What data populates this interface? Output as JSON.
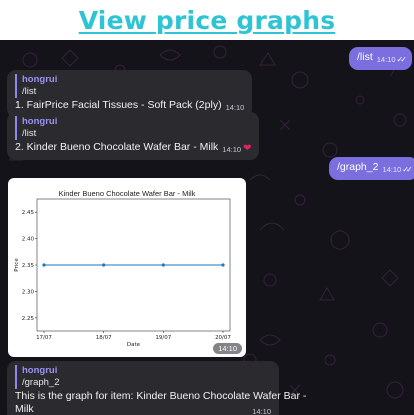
{
  "header": {
    "title": "View price graphs"
  },
  "messages": {
    "m1": {
      "text": "/list",
      "time": "14:10",
      "ticks": "✓✓"
    },
    "m2": {
      "sender": "hongrui",
      "quote": "/list",
      "text": "1. FairPrice Facial Tissues - Soft Pack (2ply)",
      "time": "14:10"
    },
    "m3": {
      "sender": "hongrui",
      "quote": "/list",
      "text": "2. Kinder Bueno Chocolate Wafer Bar - Milk",
      "time": "14:10",
      "emoji": "❤"
    },
    "m4": {
      "text": "/graph_2",
      "time": "14:10",
      "ticks": "✓✓"
    },
    "photo": {
      "time": "14:10"
    },
    "m5": {
      "sender": "hongrui",
      "quote": "/graph_2",
      "line1": "This is the graph for item: Kinder Bueno Chocolate Wafer Bar -",
      "line2": "Milk",
      "time": "14:10"
    }
  },
  "colors": {
    "accent": "#7b6fe0",
    "incoming": "#2a2a2f",
    "title": "#2fc4d4",
    "series": "#1f77b4"
  },
  "chart_data": {
    "type": "line",
    "title": "Kinder Bueno Chocolate Wafer Bar - Milk",
    "xlabel": "Date",
    "ylabel": "Price",
    "x": [
      "17/07",
      "18/07",
      "19/07",
      "20/07"
    ],
    "series": [
      {
        "values": [
          2.35,
          2.35,
          2.35,
          2.35
        ]
      }
    ],
    "yticks": [
      "2.25",
      "2.30",
      "2.35",
      "2.40",
      "2.45"
    ],
    "ylim": [
      2.225,
      2.475
    ],
    "grid": false
  }
}
